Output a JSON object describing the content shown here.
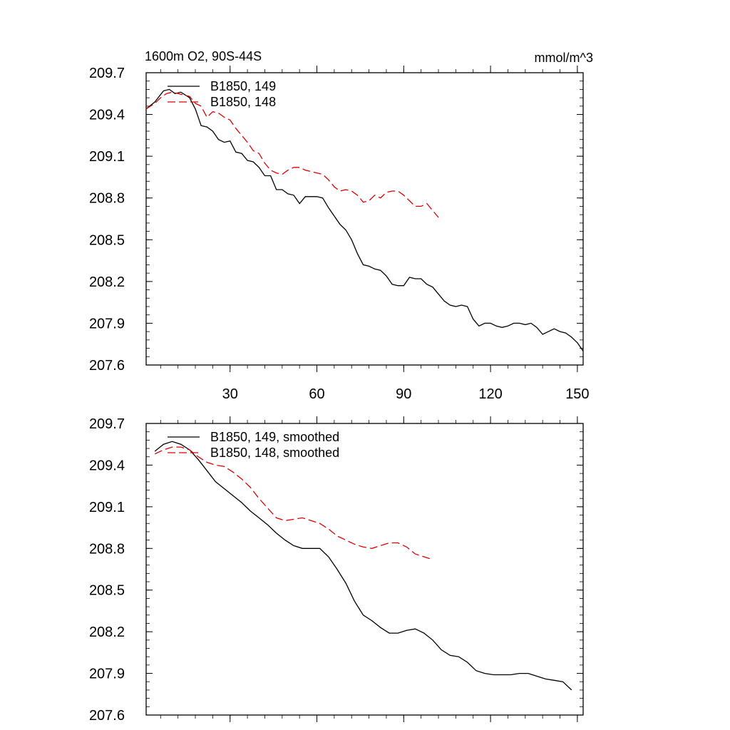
{
  "figure": {
    "left_title": "1600m O2, 90S-44S",
    "right_title": "mmol/m^3"
  },
  "chart_data": [
    {
      "type": "line",
      "panel": "top",
      "xlim": [
        1,
        152
      ],
      "ylim": [
        207.6,
        209.7
      ],
      "x_ticks": [
        30,
        60,
        90,
        120,
        150
      ],
      "x_tick_labels": [
        "30",
        "60",
        "90",
        "120",
        "150"
      ],
      "x_tick_labels_visible": true,
      "y_ticks": [
        207.6,
        207.9,
        208.2,
        208.5,
        208.8,
        209.1,
        209.4,
        209.7
      ],
      "y_tick_labels": [
        "207.6",
        "207.9",
        "208.2",
        "208.5",
        "208.8",
        "209.1",
        "209.4",
        "209.7"
      ],
      "legend_placement": "top-left",
      "series": [
        {
          "name": "B1850, 149",
          "color": "#000000",
          "dash": "solid",
          "x": [
            1,
            4,
            7,
            9,
            11,
            13,
            16,
            18,
            20,
            22,
            24,
            26,
            28,
            30,
            32,
            34,
            36,
            38,
            40,
            42,
            44,
            46,
            48,
            50,
            52,
            54,
            56,
            58,
            60,
            62,
            64,
            66,
            68,
            70,
            72,
            74,
            76,
            78,
            80,
            82,
            84,
            86,
            88,
            90,
            92,
            94,
            96,
            98,
            100,
            102,
            104,
            106,
            108,
            110,
            112,
            114,
            116,
            118,
            120,
            122,
            124,
            126,
            128,
            130,
            132,
            134,
            136,
            138,
            140,
            142,
            144,
            146,
            148,
            150,
            152
          ],
          "y": [
            209.44,
            209.49,
            209.57,
            209.58,
            209.55,
            209.56,
            209.52,
            209.44,
            209.32,
            209.31,
            209.28,
            209.22,
            209.2,
            209.21,
            209.13,
            209.12,
            209.07,
            209.06,
            209.02,
            208.96,
            208.96,
            208.86,
            208.86,
            208.83,
            208.82,
            208.76,
            208.81,
            208.81,
            208.81,
            208.8,
            208.73,
            208.67,
            208.61,
            208.57,
            208.5,
            208.4,
            208.32,
            208.31,
            208.29,
            208.28,
            208.24,
            208.18,
            208.17,
            208.17,
            208.23,
            208.22,
            208.22,
            208.18,
            208.16,
            208.11,
            208.06,
            208.03,
            208.02,
            208.03,
            208.02,
            207.93,
            207.88,
            207.9,
            207.9,
            207.88,
            207.87,
            207.88,
            207.9,
            207.9,
            207.89,
            207.9,
            207.87,
            207.82,
            207.84,
            207.86,
            207.84,
            207.83,
            207.8,
            207.76,
            207.7
          ]
        },
        {
          "name": "B1850, 148",
          "color": "#dd0000",
          "dash": "dashed",
          "x": [
            1,
            4,
            6,
            8,
            10,
            12,
            14,
            16,
            18,
            20,
            22,
            24,
            26,
            28,
            30,
            32,
            34,
            36,
            38,
            40,
            42,
            44,
            46,
            48,
            50,
            52,
            54,
            56,
            58,
            60,
            62,
            64,
            66,
            68,
            70,
            72,
            74,
            76,
            78,
            80,
            82,
            84,
            86,
            88,
            90,
            92,
            94,
            96,
            98,
            100,
            102
          ],
          "y": [
            209.44,
            209.48,
            209.52,
            209.55,
            209.56,
            209.55,
            209.54,
            209.53,
            209.48,
            209.46,
            209.38,
            209.42,
            209.41,
            209.38,
            209.36,
            209.3,
            209.25,
            209.2,
            209.14,
            209.12,
            209.05,
            209.0,
            208.98,
            208.97,
            209.0,
            209.02,
            209.02,
            209.0,
            208.99,
            208.98,
            208.97,
            208.93,
            208.88,
            208.85,
            208.86,
            208.85,
            208.82,
            208.77,
            208.78,
            208.82,
            208.8,
            208.84,
            208.85,
            208.85,
            208.82,
            208.78,
            208.74,
            208.74,
            208.76,
            208.71,
            208.66
          ]
        }
      ]
    },
    {
      "type": "line",
      "panel": "bottom",
      "xlim": [
        1,
        152
      ],
      "ylim": [
        207.6,
        209.7
      ],
      "x_ticks": [
        30,
        60,
        90,
        120,
        150
      ],
      "x_tick_labels_visible": false,
      "y_ticks": [
        207.6,
        207.9,
        208.2,
        208.5,
        208.8,
        209.1,
        209.4,
        209.7
      ],
      "y_tick_labels": [
        "207.6",
        "207.9",
        "208.2",
        "208.5",
        "208.8",
        "209.1",
        "209.4",
        "209.7"
      ],
      "legend_placement": "top-left",
      "series": [
        {
          "name": "B1850, 149, smoothed",
          "color": "#000000",
          "dash": "solid",
          "x": [
            4,
            7,
            10,
            13,
            16,
            19,
            22,
            25,
            28,
            31,
            34,
            37,
            40,
            43,
            46,
            49,
            52,
            55,
            58,
            61,
            64,
            67,
            70,
            73,
            76,
            79,
            82,
            85,
            88,
            91,
            94,
            97,
            100,
            103,
            106,
            109,
            112,
            115,
            118,
            121,
            124,
            127,
            130,
            133,
            136,
            139,
            142,
            145,
            148
          ],
          "y": [
            209.5,
            209.55,
            209.57,
            209.55,
            209.51,
            209.44,
            209.36,
            209.28,
            209.23,
            209.18,
            209.13,
            209.07,
            209.02,
            208.97,
            208.91,
            208.86,
            208.82,
            208.8,
            208.8,
            208.8,
            208.74,
            208.65,
            208.55,
            208.42,
            208.32,
            208.28,
            208.23,
            208.19,
            208.19,
            208.21,
            208.22,
            208.19,
            208.14,
            208.07,
            208.03,
            208.02,
            207.98,
            207.92,
            207.9,
            207.89,
            207.89,
            207.89,
            207.9,
            207.9,
            207.88,
            207.86,
            207.85,
            207.84,
            207.78
          ]
        },
        {
          "name": "B1850, 148, smoothed",
          "color": "#dd0000",
          "dash": "dashed",
          "x": [
            4,
            7,
            10,
            13,
            16,
            19,
            22,
            25,
            28,
            31,
            34,
            37,
            40,
            43,
            46,
            49,
            52,
            55,
            58,
            61,
            64,
            67,
            70,
            73,
            76,
            79,
            82,
            85,
            88,
            91,
            94,
            97,
            100
          ],
          "y": [
            209.48,
            209.51,
            209.53,
            209.53,
            209.51,
            209.46,
            209.42,
            209.4,
            209.39,
            209.35,
            209.3,
            209.24,
            209.16,
            209.09,
            209.02,
            209.0,
            209.01,
            209.02,
            209.0,
            208.98,
            208.94,
            208.89,
            208.86,
            208.83,
            208.81,
            208.8,
            208.82,
            208.84,
            208.84,
            208.81,
            208.76,
            208.74,
            208.72
          ]
        }
      ]
    }
  ]
}
